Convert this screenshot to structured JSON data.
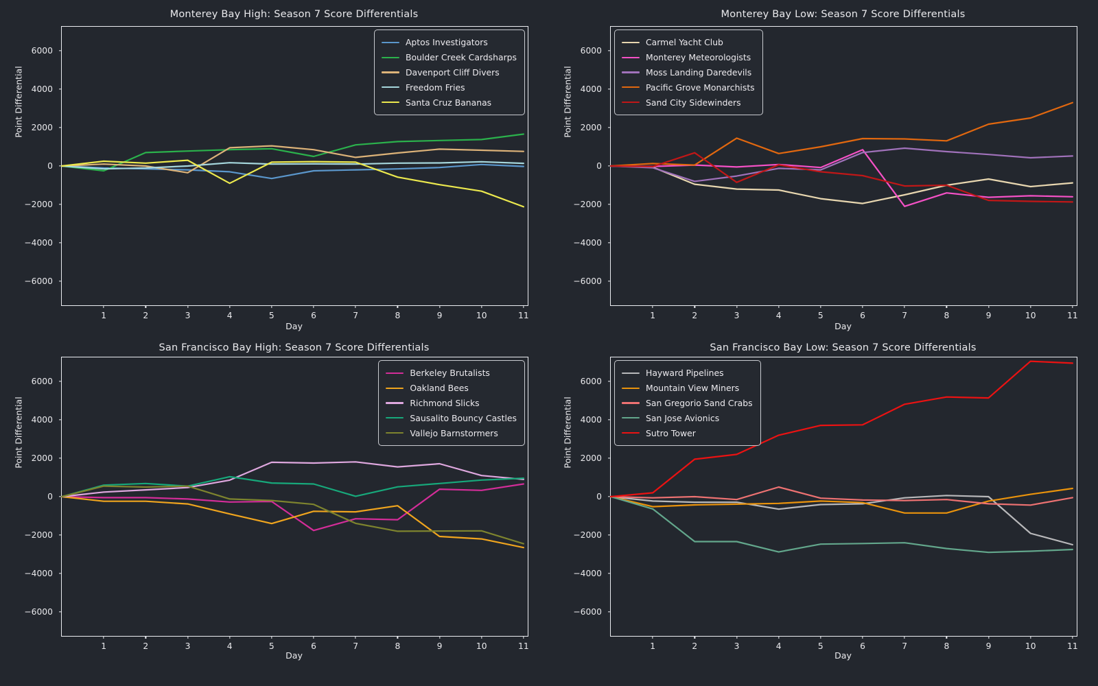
{
  "figure": {
    "background": "#23272e",
    "text_color": "#e9e9ec",
    "spine_color": "#eceef2"
  },
  "chart_data": [
    {
      "type": "line",
      "title": "Monterey Bay High: Season 7 Score Differentials",
      "xlabel": "Day",
      "ylabel": "Point Differential",
      "x": [
        0,
        1,
        2,
        3,
        4,
        5,
        6,
        7,
        8,
        9,
        10,
        11
      ],
      "xticks": [
        1,
        2,
        3,
        4,
        5,
        6,
        7,
        8,
        9,
        10,
        11
      ],
      "yticks": [
        6000,
        4000,
        2000,
        0,
        -2000,
        -4000,
        -6000
      ],
      "xlim": [
        0,
        11.1
      ],
      "ylim": [
        -7250,
        7250
      ],
      "grid": false,
      "legend_position": "upper-right",
      "series": [
        {
          "name": "Aptos Investigators",
          "color": "#5b97cc",
          "values": [
            0,
            -100,
            -150,
            -200,
            -300,
            -650,
            -250,
            -200,
            -150,
            -80,
            80,
            -20
          ]
        },
        {
          "name": "Boulder Creek Cardsharps",
          "color": "#2bb24c",
          "values": [
            0,
            -250,
            700,
            780,
            850,
            900,
            500,
            1100,
            1270,
            1330,
            1380,
            1660
          ]
        },
        {
          "name": "Davenport Cliff Divers",
          "color": "#ddb379",
          "values": [
            0,
            100,
            0,
            -350,
            950,
            1050,
            850,
            450,
            680,
            880,
            820,
            760
          ]
        },
        {
          "name": "Freedom Fries",
          "color": "#a6d7dd",
          "values": [
            0,
            -150,
            -100,
            0,
            170,
            100,
            110,
            100,
            150,
            160,
            220,
            140
          ]
        },
        {
          "name": "Santa Cruz Bananas",
          "color": "#ece94e",
          "values": [
            0,
            250,
            150,
            300,
            -900,
            200,
            230,
            200,
            -580,
            -970,
            -1310,
            -2120
          ]
        }
      ]
    },
    {
      "type": "line",
      "title": "Monterey Bay Low: Season 7 Score Differentials",
      "xlabel": "Day",
      "ylabel": "Point Differential",
      "x": [
        0,
        1,
        2,
        3,
        4,
        5,
        6,
        7,
        8,
        9,
        10,
        11
      ],
      "xticks": [
        1,
        2,
        3,
        4,
        5,
        6,
        7,
        8,
        9,
        10,
        11
      ],
      "yticks": [
        6000,
        4000,
        2000,
        0,
        -2000,
        -4000,
        -6000
      ],
      "xlim": [
        0,
        11.1
      ],
      "ylim": [
        -7250,
        7250
      ],
      "grid": false,
      "legend_position": "upper-left",
      "series": [
        {
          "name": "Carmel Yacht Club",
          "color": "#e8d7b0",
          "values": [
            0,
            -60,
            -950,
            -1200,
            -1250,
            -1700,
            -1950,
            -1500,
            -1000,
            -680,
            -1070,
            -880
          ]
        },
        {
          "name": "Monterey Meteorologists",
          "color": "#f551c6",
          "values": [
            0,
            -20,
            50,
            -50,
            80,
            -80,
            850,
            -2100,
            -1400,
            -1630,
            -1550,
            -1600
          ]
        },
        {
          "name": "Moss Landing Daredevils",
          "color": "#a172bb",
          "values": [
            0,
            -90,
            -800,
            -520,
            -120,
            -200,
            700,
            930,
            750,
            600,
            430,
            520
          ]
        },
        {
          "name": "Pacific Grove Monarchists",
          "color": "#e2680f",
          "values": [
            0,
            130,
            50,
            1450,
            650,
            1000,
            1430,
            1410,
            1310,
            2180,
            2500,
            3300
          ]
        },
        {
          "name": "Sand City Sidewinders",
          "color": "#c11717",
          "values": [
            0,
            -30,
            690,
            -850,
            60,
            -300,
            -500,
            -1040,
            -1000,
            -1790,
            -1840,
            -1870
          ]
        }
      ]
    },
    {
      "type": "line",
      "title": "San Francisco Bay High: Season 7 Score Differentials",
      "xlabel": "Day",
      "ylabel": "Point Differential",
      "x": [
        0,
        1,
        2,
        3,
        4,
        5,
        6,
        7,
        8,
        9,
        10,
        11
      ],
      "xticks": [
        1,
        2,
        3,
        4,
        5,
        6,
        7,
        8,
        9,
        10,
        11
      ],
      "yticks": [
        6000,
        4000,
        2000,
        0,
        -2000,
        -4000,
        -6000
      ],
      "xlim": [
        0,
        11.1
      ],
      "ylim": [
        -7250,
        7250
      ],
      "grid": false,
      "legend_position": "upper-right",
      "series": [
        {
          "name": "Berkeley Brutalists",
          "color": "#d42d99",
          "values": [
            0,
            -50,
            -50,
            -120,
            -280,
            -250,
            -1760,
            -1150,
            -1200,
            390,
            330,
            660
          ]
        },
        {
          "name": "Oakland Bees",
          "color": "#f0a51e",
          "values": [
            0,
            -240,
            -240,
            -380,
            -900,
            -1400,
            -760,
            -790,
            -470,
            -2070,
            -2200,
            -2650
          ]
        },
        {
          "name": "Richmond Slicks",
          "color": "#dfa8df",
          "values": [
            0,
            240,
            355,
            475,
            860,
            1790,
            1750,
            1810,
            1550,
            1715,
            1100,
            900
          ]
        },
        {
          "name": "Sausalito Bouncy Castles",
          "color": "#17a97b",
          "values": [
            0,
            600,
            685,
            545,
            1040,
            710,
            660,
            20,
            510,
            685,
            865,
            960
          ]
        },
        {
          "name": "Vallejo Barnstormers",
          "color": "#7e842e",
          "values": [
            0,
            550,
            500,
            550,
            -120,
            -200,
            -400,
            -1390,
            -1800,
            -1790,
            -1780,
            -2450
          ]
        }
      ]
    },
    {
      "type": "line",
      "title": "San Francisco Bay Low: Season 7 Score Differentials",
      "xlabel": "Day",
      "ylabel": "Point Differential",
      "x": [
        0,
        1,
        2,
        3,
        4,
        5,
        6,
        7,
        8,
        9,
        10,
        11
      ],
      "xticks": [
        1,
        2,
        3,
        4,
        5,
        6,
        7,
        8,
        9,
        10,
        11
      ],
      "yticks": [
        6000,
        4000,
        2000,
        0,
        -2000,
        -4000,
        -6000
      ],
      "xlim": [
        0,
        11.1
      ],
      "ylim": [
        -7250,
        7250
      ],
      "grid": false,
      "legend_position": "upper-left",
      "series": [
        {
          "name": "Hayward Pipelines",
          "color": "#b9b9bb",
          "values": [
            0,
            -230,
            -290,
            -290,
            -650,
            -410,
            -370,
            -60,
            60,
            0,
            -1910,
            -2500
          ]
        },
        {
          "name": "Mountain View Miners",
          "color": "#ea930c",
          "values": [
            0,
            -520,
            -430,
            -390,
            -350,
            -230,
            -310,
            -850,
            -850,
            -230,
            120,
            430
          ]
        },
        {
          "name": "San Gregorio Sand Crabs",
          "color": "#ee7272",
          "values": [
            0,
            -60,
            0,
            -150,
            500,
            -80,
            -175,
            -200,
            -150,
            -370,
            -440,
            -50
          ]
        },
        {
          "name": "San Jose Avionics",
          "color": "#63a78c",
          "values": [
            0,
            -640,
            -2340,
            -2340,
            -2880,
            -2470,
            -2440,
            -2400,
            -2700,
            -2900,
            -2840,
            -2750
          ]
        },
        {
          "name": "Sutro Tower",
          "color": "#ec1212",
          "values": [
            0,
            200,
            1950,
            2200,
            3200,
            3710,
            3740,
            4810,
            5190,
            5140,
            7050,
            6950
          ]
        }
      ]
    }
  ]
}
